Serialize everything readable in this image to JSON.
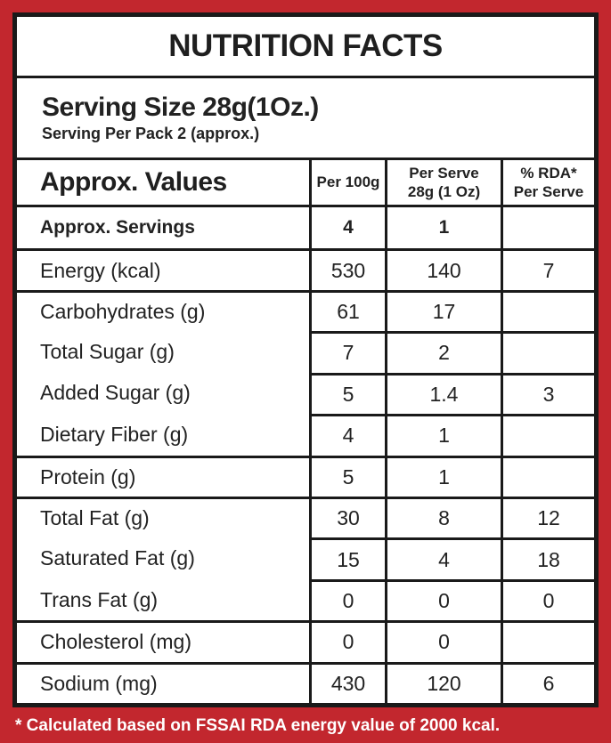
{
  "title": "NUTRITION FACTS",
  "serving": {
    "size": "Serving Size 28g(1Oz.)",
    "per_pack": "Serving Per Pack 2 (approx.)"
  },
  "table": {
    "header": {
      "col0": "Approx. Values",
      "col1": "Per 100g",
      "col2": "Per Serve\n28g (1 Oz)",
      "col3": "% RDA*\nPer Serve"
    },
    "rows": [
      {
        "label": "Approx. Servings",
        "per_100g": "4",
        "per_serve": "1",
        "rda": ""
      },
      {
        "label": "Energy (kcal)",
        "per_100g": "530",
        "per_serve": "140",
        "rda": "7"
      },
      {
        "label": "Carbohydrates (g)",
        "per_100g": "61",
        "per_serve": "17",
        "rda": ""
      },
      {
        "label": "Total Sugar (g)",
        "per_100g": "7",
        "per_serve": "2",
        "rda": ""
      },
      {
        "label": "Added Sugar (g)",
        "per_100g": "5",
        "per_serve": "1.4",
        "rda": "3"
      },
      {
        "label": "Dietary Fiber (g)",
        "per_100g": "4",
        "per_serve": "1",
        "rda": ""
      },
      {
        "label": "Protein (g)",
        "per_100g": "5",
        "per_serve": "1",
        "rda": ""
      },
      {
        "label": "Total Fat (g)",
        "per_100g": "30",
        "per_serve": "8",
        "rda": "12"
      },
      {
        "label": "Saturated Fat (g)",
        "per_100g": "15",
        "per_serve": "4",
        "rda": "18"
      },
      {
        "label": "Trans Fat (g)",
        "per_100g": "0",
        "per_serve": "0",
        "rda": "0"
      },
      {
        "label": "Cholesterol (mg)",
        "per_100g": "0",
        "per_serve": "0",
        "rda": ""
      },
      {
        "label": "Sodium (mg)",
        "per_100g": "430",
        "per_serve": "120",
        "rda": "6"
      }
    ]
  },
  "footnote": "* Calculated based on FSSAI RDA energy value of 2000 kcal.",
  "colors": {
    "accent_red": "#C2272E",
    "border_black": "#1A1A1A",
    "footnote_text": "#FFFFFF"
  }
}
